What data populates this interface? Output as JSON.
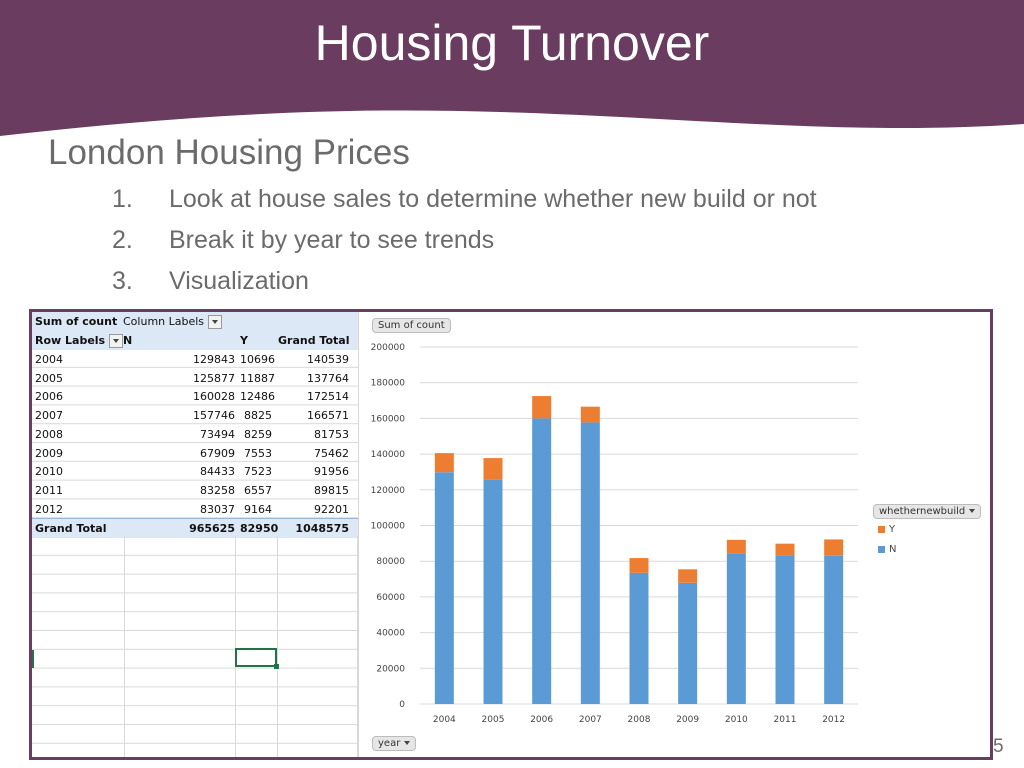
{
  "slide": {
    "title": "Housing Turnover",
    "subtitle": "London Housing Prices",
    "bullets": [
      {
        "num": "1.",
        "text": "Look at house sales to determine whether new build or not"
      },
      {
        "num": "2.",
        "text": "Break it by year to see trends"
      },
      {
        "num": "3.",
        "text": "Visualization"
      }
    ],
    "page_number": "5",
    "colors": {
      "banner": "#6a3c60",
      "text": "#6b6b6b"
    }
  },
  "pivot": {
    "sum_label": "Sum of count",
    "column_labels": "Column Labels",
    "row_labels": "Row Labels",
    "col_n": "N",
    "col_y": "Y",
    "col_total": "Grand Total",
    "rows": [
      {
        "year": "2004",
        "n": "129843",
        "y": "10696",
        "total": "140539"
      },
      {
        "year": "2005",
        "n": "125877",
        "y": "11887",
        "total": "137764"
      },
      {
        "year": "2006",
        "n": "160028",
        "y": "12486",
        "total": "172514"
      },
      {
        "year": "2007",
        "n": "157746",
        "y": "8825",
        "total": "166571"
      },
      {
        "year": "2008",
        "n": "73494",
        "y": "8259",
        "total": "81753"
      },
      {
        "year": "2009",
        "n": "67909",
        "y": "7553",
        "total": "75462"
      },
      {
        "year": "2010",
        "n": "84433",
        "y": "7523",
        "total": "91956"
      },
      {
        "year": "2011",
        "n": "83258",
        "y": "6557",
        "total": "89815"
      },
      {
        "year": "2012",
        "n": "83037",
        "y": "9164",
        "total": "92201"
      }
    ],
    "grand_total": {
      "label": "Grand Total",
      "n": "965625",
      "y": "82950",
      "total": "1048575"
    }
  },
  "chart_buttons": {
    "value_field": "Sum of count",
    "axis_field": "year",
    "legend_field": "whethernewbuild"
  },
  "chart_data": {
    "type": "bar",
    "stacked": true,
    "categories": [
      "2004",
      "2005",
      "2006",
      "2007",
      "2008",
      "2009",
      "2010",
      "2011",
      "2012"
    ],
    "series": [
      {
        "name": "N",
        "color": "#5b9bd5",
        "values": [
          129843,
          125877,
          160028,
          157746,
          73494,
          67909,
          84433,
          83258,
          83037
        ]
      },
      {
        "name": "Y",
        "color": "#ed7d31",
        "values": [
          10696,
          11887,
          12486,
          8825,
          8259,
          7553,
          7523,
          6557,
          9164
        ]
      }
    ],
    "ylim": [
      0,
      200000
    ],
    "yticks": [
      0,
      20000,
      40000,
      60000,
      80000,
      100000,
      120000,
      140000,
      160000,
      180000,
      200000
    ],
    "legend_order": [
      "Y",
      "N"
    ],
    "legend_position": "right",
    "grid": true
  }
}
